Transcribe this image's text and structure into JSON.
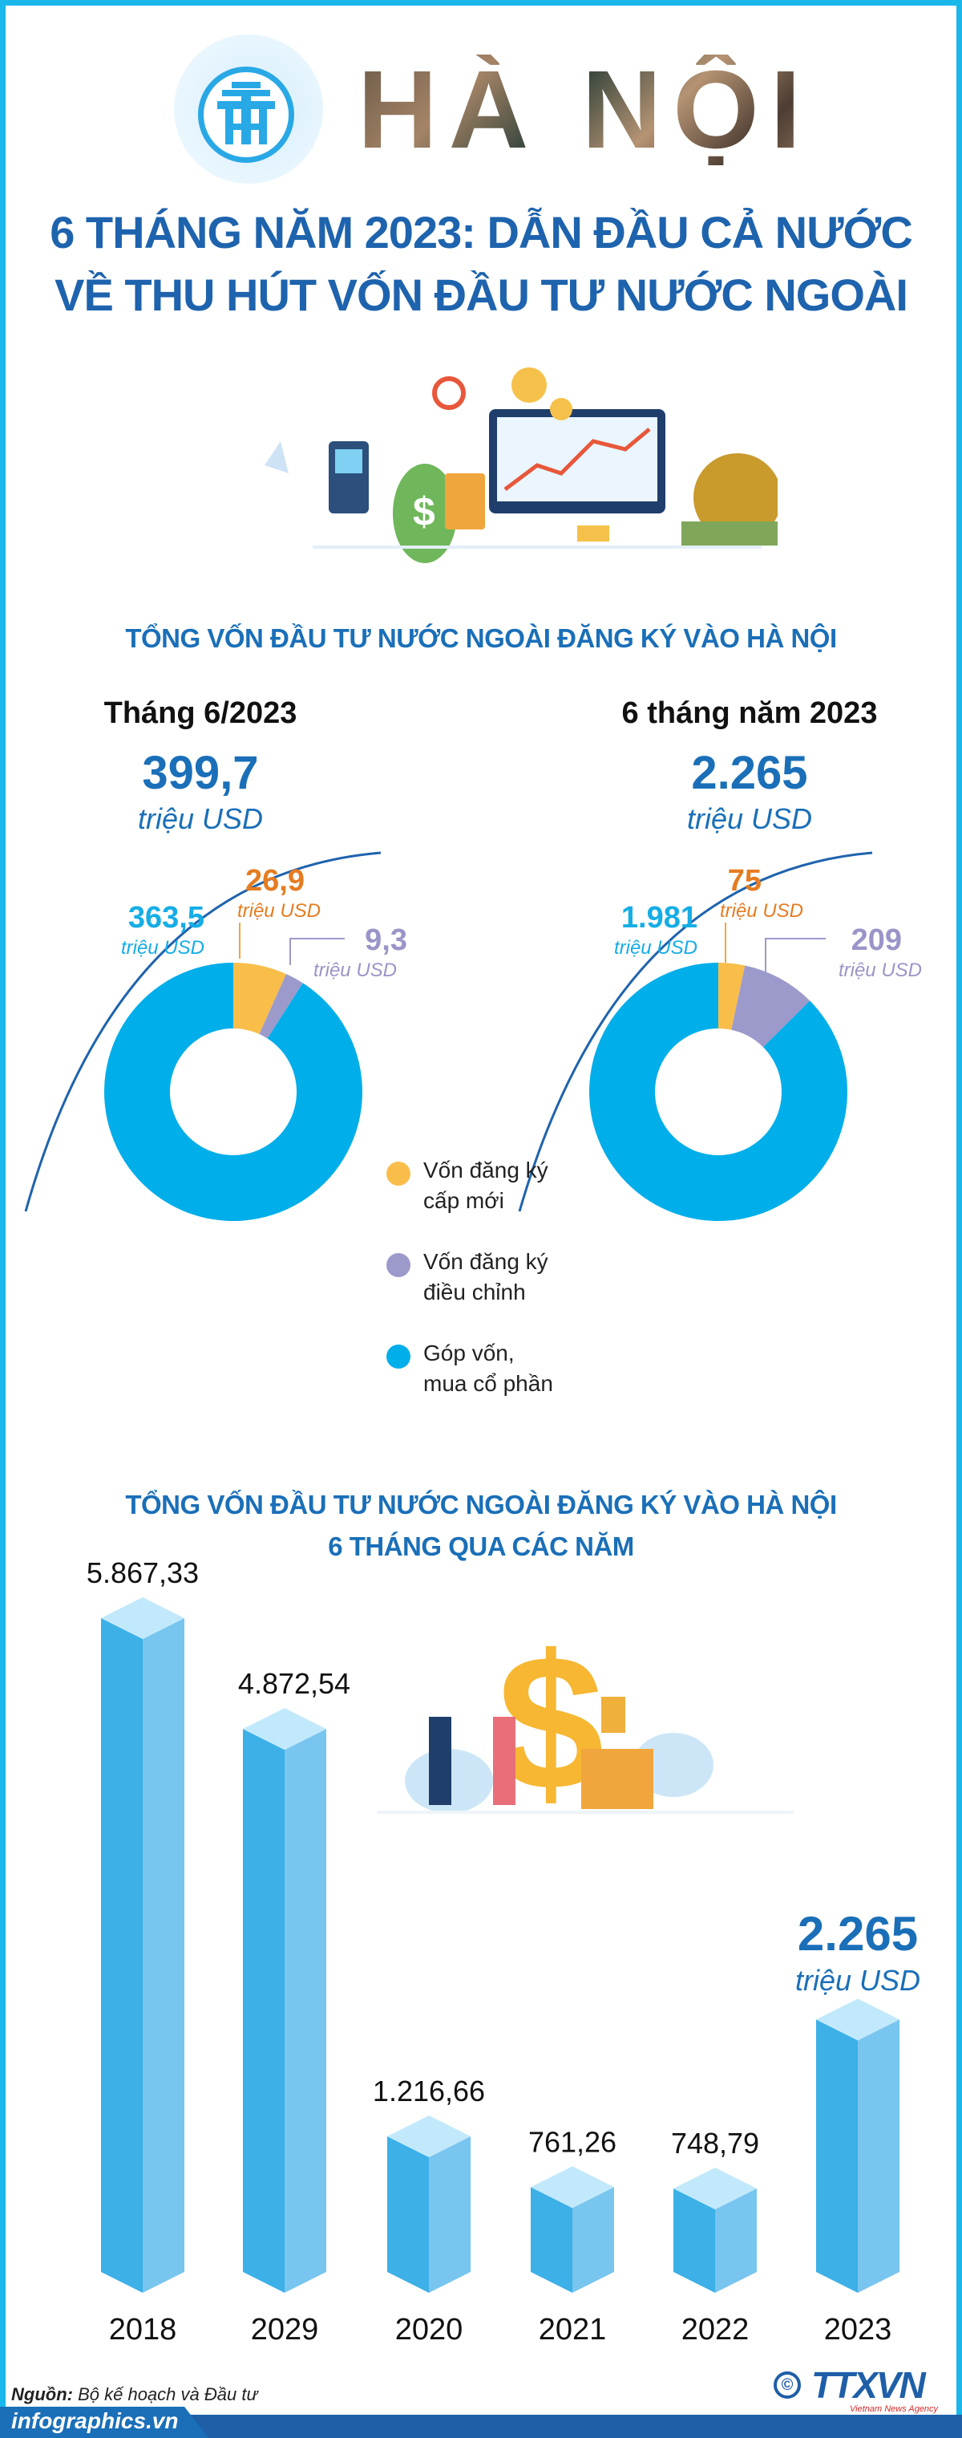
{
  "header": {
    "city": "HÀ NỘI",
    "title_line1": "6 THÁNG NĂM 2023: DẪN ĐẦU CẢ NƯỚC",
    "title_line2": "VỀ THU HÚT VỐN ĐẦU TƯ NƯỚC NGOÀI",
    "logo_icon": "hanoi-emblem-icon"
  },
  "section1": {
    "title": "TỔNG VỐN ĐẦU TƯ NƯỚC NGOÀI ĐĂNG KÝ VÀO HÀ NỘI",
    "left": {
      "subtitle": "Tháng 6/2023",
      "total": "399,7",
      "unit": "triệu USD",
      "labels": [
        {
          "value": "26,9",
          "unit": "triệu USD"
        },
        {
          "value": "9,3",
          "unit": "triệu USD"
        },
        {
          "value": "363,5",
          "unit": "triệu USD"
        }
      ]
    },
    "right": {
      "subtitle": "6 tháng năm 2023",
      "total": "2.265",
      "unit": "triệu USD",
      "labels": [
        {
          "value": "75",
          "unit": "triệu USD"
        },
        {
          "value": "209",
          "unit": "triệu USD"
        },
        {
          "value": "1.981",
          "unit": "triệu USD"
        }
      ]
    },
    "legend": [
      {
        "label_line1": "Vốn đăng ký",
        "label_line2": "cấp mới",
        "color": "#f9be4a"
      },
      {
        "label_line1": "Vốn đăng ký",
        "label_line2": "điều chỉnh",
        "color": "#9c9acb"
      },
      {
        "label_line1": "Góp vốn,",
        "label_line2": "mua cổ phần",
        "color": "#00aeea"
      }
    ]
  },
  "section2": {
    "title_line1": "TỔNG VỐN ĐẦU TƯ NƯỚC NGOÀI ĐĂNG KÝ VÀO HÀ NỘI",
    "title_line2": "6 THÁNG QUA CÁC NĂM",
    "highlight_value": "2.265",
    "highlight_unit": "triệu USD"
  },
  "chart_data": [
    {
      "type": "pie",
      "title": "Tháng 6/2023",
      "donut": true,
      "categories": [
        "Vốn đăng ký cấp mới",
        "Vốn đăng ký điều chỉnh",
        "Góp vốn, mua cổ phần"
      ],
      "values": [
        26.9,
        9.3,
        363.5
      ],
      "total": 399.7,
      "unit": "triệu USD",
      "colors": [
        "#f9be4a",
        "#9c9acb",
        "#00aeea"
      ]
    },
    {
      "type": "pie",
      "title": "6 tháng năm 2023",
      "donut": true,
      "categories": [
        "Vốn đăng ký cấp mới",
        "Vốn đăng ký điều chỉnh",
        "Góp vốn, mua cổ phần"
      ],
      "values": [
        75,
        209,
        1981
      ],
      "total": 2265,
      "unit": "triệu USD",
      "colors": [
        "#f9be4a",
        "#9c9acb",
        "#00aeea"
      ]
    },
    {
      "type": "bar",
      "title": "TỔNG VỐN ĐẦU TƯ NƯỚC NGOÀI ĐĂNG KÝ VÀO HÀ NỘI 6 THÁNG QUA CÁC NĂM",
      "categories": [
        "2018",
        "2029",
        "2020",
        "2021",
        "2022",
        "2023"
      ],
      "values": [
        5867.33,
        4872.54,
        1216.66,
        761.26,
        748.79,
        2265
      ],
      "value_labels": [
        "5.867,33",
        "4.872,54",
        "1.216,66",
        "761,26",
        "748,79",
        "2.265"
      ],
      "unit": "triệu USD",
      "colors": {
        "front": "#3cb0e7",
        "side": "#78c5ef",
        "top": "#c2e9fb"
      }
    }
  ],
  "footer": {
    "source_label": "Nguồn:",
    "source_text": "Bộ kế hoạch và Đầu tư",
    "site": "infographics.vn",
    "agency_logo": "TTXVN",
    "agency_tagline": "Vietnam News Agency",
    "copyright_symbol": "©"
  }
}
